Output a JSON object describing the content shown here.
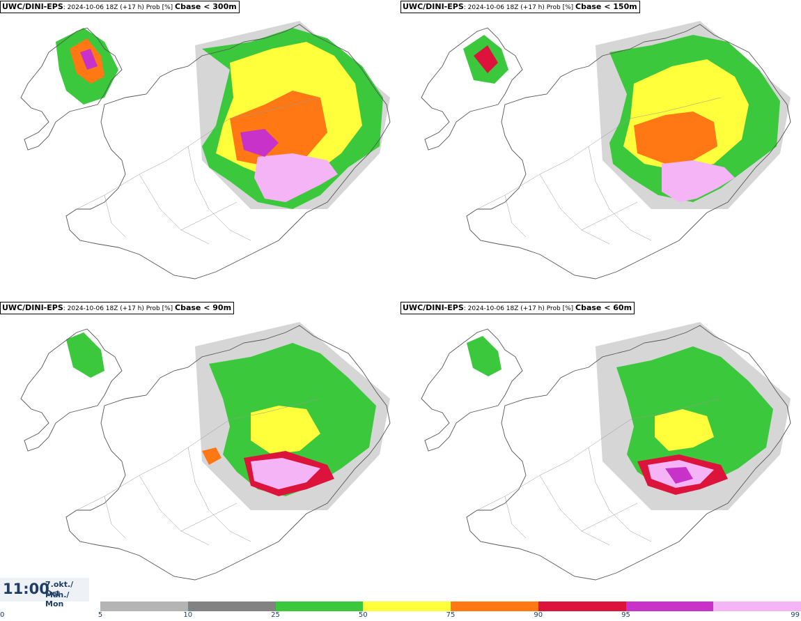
{
  "panels": [
    {
      "model": "UWC/DINI-EPS",
      "meta": ": 2024-10-06 18Z (+17 h) Prob [%] ",
      "variable": "Cbase < 300m"
    },
    {
      "model": "UWC/DINI-EPS",
      "meta": ": 2024-10-06 18Z (+17 h) Prob [%] ",
      "variable": "Cbase < 150m"
    },
    {
      "model": "UWC/DINI-EPS",
      "meta": ": 2024-10-06 18Z (+17 h) Prob [%] ",
      "variable": "Cbase < 90m"
    },
    {
      "model": "UWC/DINI-EPS",
      "meta": ": 2024-10-06 18Z (+17 h) Prob [%] ",
      "variable": "Cbase < 60m"
    }
  ],
  "time": {
    "clock": "11:00",
    "date_line": "7.okt./ Oct",
    "day_line": "Mán./ Mon"
  },
  "colorbar": {
    "ticks": [
      "0",
      "5",
      "10",
      "25",
      "50",
      "75",
      "90",
      "95",
      "99"
    ],
    "colors": [
      "#b4b4b4",
      "#828282",
      "#3cc83c",
      "#ffff3c",
      "#ff7814",
      "#dc143c",
      "#c832c8",
      "#f5b4f5"
    ]
  }
}
